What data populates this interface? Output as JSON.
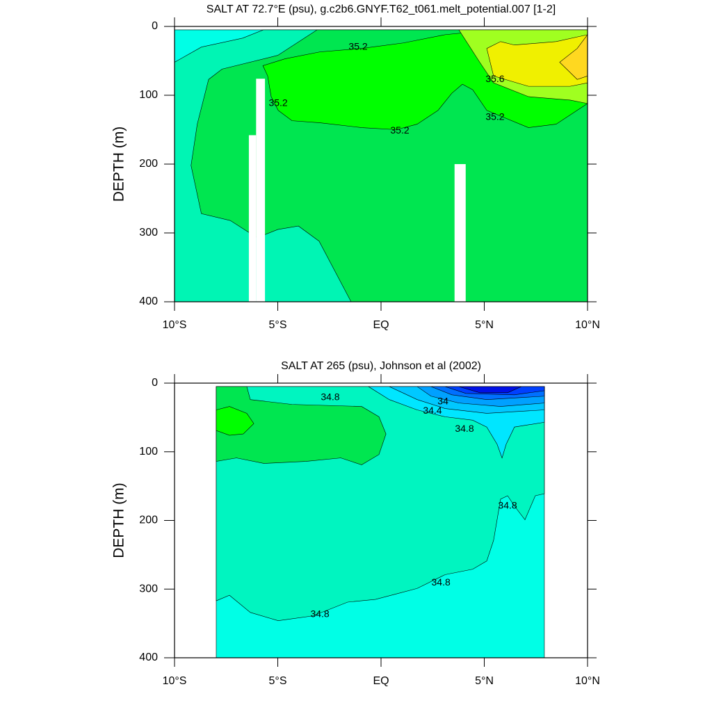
{
  "chart_data": [
    {
      "type": "contour",
      "title": "SALT AT  72.7°E (psu), g.c2b6.GNYF.T62_t061.melt_potential.007 [1-2]",
      "ylabel": "DEPTH (m)",
      "xlim": [
        -10,
        10
      ],
      "ylim": [
        400,
        0
      ],
      "xticks": [
        {
          "value": -10,
          "label": "10°S"
        },
        {
          "value": -5,
          "label": "5°S"
        },
        {
          "value": 0,
          "label": "EQ"
        },
        {
          "value": 5,
          "label": "5°N"
        },
        {
          "value": 10,
          "label": "10°N"
        }
      ],
      "yticks": [
        0,
        100,
        200,
        300,
        400
      ],
      "regions": [
        {
          "color": "#00ffe6",
          "x": [
            -10,
            10,
            10,
            -10
          ],
          "y": [
            5,
            5,
            400,
            400
          ]
        },
        {
          "color": "#00f5b4",
          "x": [
            -10,
            -8.7,
            -6.7,
            -5.7,
            10,
            10,
            -10
          ],
          "y": [
            52,
            30,
            17,
            5,
            5,
            400,
            400
          ]
        },
        {
          "color": "#00e650",
          "x": [
            -3.1,
            -5.0,
            -7.7,
            -8.35,
            -8.9,
            -9.2,
            -8.7,
            -7.3,
            -6.0,
            -5.0,
            -4.0,
            -3.0,
            -1.45,
            10,
            10
          ],
          "y": [
            5,
            42,
            62,
            77,
            142,
            202,
            272,
            282,
            307,
            295,
            290,
            312,
            400,
            400,
            5
          ]
        },
        {
          "color": "#00ff00",
          "x": [
            -5.72,
            -4.65,
            -2.96,
            -0.94,
            1.08,
            3.1,
            4.78,
            10,
            10,
            8.48,
            7.14,
            5.12,
            4.44,
            3.94,
            3.43,
            2.76,
            1.75,
            0.74,
            -0.94,
            -2.96,
            -4.31,
            -4.98,
            -5.32,
            -5.49
          ],
          "y": [
            57,
            47,
            37,
            32,
            24,
            12,
            7,
            5,
            112,
            142,
            147,
            122,
            92,
            84,
            97,
            122,
            142,
            150,
            147,
            140,
            137,
            122,
            102,
            72
          ]
        },
        {
          "color": "#a0ff20",
          "x": [
            3.77,
            4.78,
            5.45,
            7.14,
            9.16,
            10,
            10
          ],
          "y": [
            5,
            52,
            82,
            102,
            107,
            112,
            5
          ]
        },
        {
          "color": "#f0f000",
          "x": [
            5.12,
            5.45,
            7.14,
            9.16,
            10,
            10,
            8.48,
            6.46,
            5.79
          ],
          "y": [
            32,
            72,
            87,
            87,
            82,
            12,
            22,
            27,
            22
          ]
        },
        {
          "color": "#ffd820",
          "x": [
            8.65,
            9.5,
            10,
            10,
            9.5
          ],
          "y": [
            52,
            77,
            72,
            12,
            32
          ]
        }
      ],
      "contour_labels": [
        {
          "x": -1.11,
          "y": 30,
          "value": 35.2
        },
        {
          "x": -4.98,
          "y": 112,
          "value": 35.2
        },
        {
          "x": 0.91,
          "y": 152,
          "value": 35.2
        },
        {
          "x": 5.52,
          "y": 77,
          "value": 35.6
        },
        {
          "x": 5.52,
          "y": 132,
          "value": 35.2
        }
      ]
    },
    {
      "type": "contour",
      "title": "SALT AT 265 (psu), Johnson et al (2002)",
      "ylabel": "DEPTH (m)",
      "xlim": [
        -10,
        10
      ],
      "ylim": [
        400,
        0
      ],
      "xticks": [
        {
          "value": -10,
          "label": "10°S"
        },
        {
          "value": -5,
          "label": "5°S"
        },
        {
          "value": 0,
          "label": "EQ"
        },
        {
          "value": 5,
          "label": "5°N"
        },
        {
          "value": 10,
          "label": "10°N"
        }
      ],
      "yticks": [
        0,
        100,
        200,
        300,
        400
      ],
      "regions": [
        {
          "color": "#00ffe6",
          "x": [
            -7.98,
            7.91,
            7.91,
            -7.98
          ],
          "y": [
            5,
            5,
            400,
            400
          ]
        },
        {
          "color": "#00f5c0",
          "x": [
            -7.98,
            -7.34,
            -6.33,
            -4.98,
            -3.3,
            -1.62,
            -0.27,
            0.74,
            1.75,
            3.1,
            4.44,
            5.12,
            5.45,
            5.79,
            6.13,
            6.46,
            6.97,
            7.47,
            7.91,
            7.91,
            -7.98
          ],
          "y": [
            317,
            309,
            334,
            346,
            339,
            319,
            315,
            307,
            299,
            279,
            271,
            259,
            229,
            169,
            164,
            179,
            199,
            164,
            161,
            5,
            5
          ]
        },
        {
          "color": "#00e650",
          "x": [
            -7.98,
            -6.5,
            -6.33,
            -4.31,
            -0.94,
            -0.1,
            0.24,
            -0.1,
            -0.94,
            -1.95,
            -3.64,
            -5.66,
            -7.0,
            -7.98
          ],
          "y": [
            5,
            5,
            24,
            31,
            34,
            49,
            74,
            104,
            119,
            109,
            114,
            117,
            109,
            114
          ]
        },
        {
          "color": "#00ff00",
          "x": [
            -7.98,
            -7.34,
            -6.5,
            -6.16,
            -6.67,
            -7.34,
            -7.98
          ],
          "y": [
            39,
            34,
            44,
            59,
            74,
            76,
            69
          ]
        },
        {
          "color": "#00e6ff",
          "x": [
            -0.61,
            0.4,
            1.75,
            3.1,
            4.44,
            5.12,
            5.62,
            5.86,
            6.06,
            6.46,
            7.91,
            7.91
          ],
          "y": [
            5,
            24,
            39,
            49,
            54,
            64,
            89,
            109,
            89,
            64,
            57,
            5
          ]
        },
        {
          "color": "#00c8ff",
          "x": [
            0.4,
            1.75,
            3.1,
            5.12,
            7.91,
            7.91
          ],
          "y": [
            5,
            24,
            37,
            44,
            39,
            5
          ]
        },
        {
          "color": "#00a0ff",
          "x": [
            1.75,
            2.42,
            3.77,
            5.79,
            7.91,
            7.91
          ],
          "y": [
            5,
            19,
            29,
            34,
            29,
            5
          ]
        },
        {
          "color": "#0070ff",
          "x": [
            2.42,
            3.43,
            5.12,
            7.91,
            7.91
          ],
          "y": [
            5,
            17,
            24,
            19,
            5
          ]
        },
        {
          "color": "#0040ff",
          "x": [
            3.1,
            4.11,
            6.46,
            7.91,
            7.91
          ],
          "y": [
            5,
            15,
            17,
            11,
            5
          ]
        },
        {
          "color": "#0010e6",
          "x": [
            3.77,
            4.78,
            6.13,
            6.8
          ],
          "y": [
            5,
            14,
            14,
            5
          ]
        }
      ],
      "contour_labels": [
        {
          "x": -2.46,
          "y": 21,
          "value": 34.8
        },
        {
          "x": 3.0,
          "y": 27,
          "value": 34
        },
        {
          "x": 2.49,
          "y": 41,
          "value": 34.4
        },
        {
          "x": 4.04,
          "y": 67,
          "value": 34.8
        },
        {
          "x": 6.13,
          "y": 179,
          "value": 34.8
        },
        {
          "x": 2.9,
          "y": 291,
          "value": 34.8
        },
        {
          "x": -2.96,
          "y": 337,
          "value": 34.8
        }
      ]
    }
  ]
}
